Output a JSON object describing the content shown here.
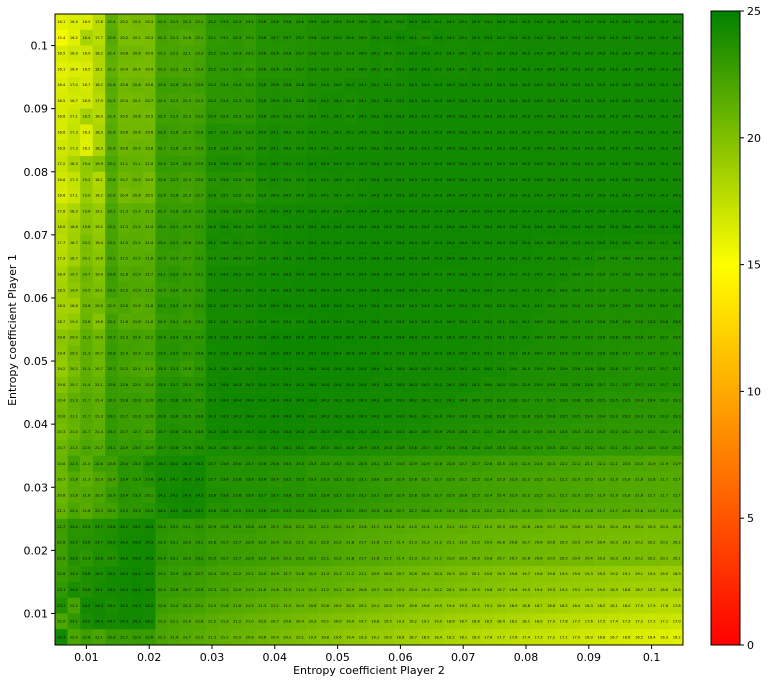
{
  "chart_data": {
    "type": "heatmap",
    "xlabel": "Entropy coefficient Player 2",
    "ylabel": "Entropy coefficient Player 1",
    "x_range": [
      0.005,
      0.105
    ],
    "y_range": [
      0.005,
      0.105
    ],
    "x_ticks": [
      "0.01",
      "0.02",
      "0.03",
      "0.04",
      "0.05",
      "0.06",
      "0.07",
      "0.08",
      "0.09",
      "0.1"
    ],
    "y_ticks": [
      "0.01",
      "0.02",
      "0.03",
      "0.04",
      "0.05",
      "0.06",
      "0.07",
      "0.08",
      "0.09",
      "0.1"
    ],
    "x_values_first": 0.006,
    "x_values_step": 0.002,
    "y_values_first": 0.006,
    "y_values_step": 0.002,
    "colorbar": {
      "min": 0,
      "max": 25,
      "ticks": [
        "0",
        "5",
        "10",
        "15",
        "20",
        "25"
      ],
      "colors": [
        "#ff0000",
        "#ffff00",
        "#008000"
      ]
    },
    "rows_top_to_bottom": [
      "16.1 16.4 16.5 17.8 21.4 20.2 20.4 20.3 22.4 22.3 22.3 22.2 23.2 23.3 23.3 23.1 23.6 23.6 23.6 23.6 23.9 23.9 23.9 23.9 23.9 24.1 24.0 24.0 24.3 24.3 24.1 24.1 24.1 24.3 24.1 24.3 24.2 24.3 24.3 24.3 24.3 24.3 24.3 24.3 24.3 24.3 24.3 24.3 24.3 24.3",
      "15.4 16.2 18.4 17.7 21.6 20.2 20.2 20.3 22.3 22.1 21.8 22.1 23.1 23.1 23.3 23.0 23.6 23.7 23.7 23.7 23.8 23.9 24.0 24.0 23.9 24.1 24.1 24.3 24.1 24.0 24.3 24.1 24.1 24.3 24.3 24.2 24.3 24.3 24.3 24.3 24.3 24.3 24.3 24.3 24.3 24.3 24.3 24.3 24.3 24.3",
      "16.5 16.9 16.9 18.2 21.4 20.6 20.6 20.4 22.2 22.2 22.1 22.3 23.2 23.2 23.3 23.1 23.6 23.6 23.6 23.7 23.8 23.9 23.9 23.9 24.0 24.1 24.0 24.1 24.3 24.3 24.1 24.1 24.1 24.3 24.1 24.3 24.3 24.3 24.3 24.3 24.3 24.3 24.3 24.3 24.3 24.3 24.3 24.3 24.3 24.3",
      "16.1 16.4 16.5 18.1 21.2 20.4 20.4 20.4 22.3 22.2 22.1 22.4 23.2 23.2 23.3 23.0 23.6 23.6 23.6 23.7 23.9 23.9 23.9 23.9 24.0 24.1 24.0 24.1 24.3 24.3 24.1 24.1 24.1 24.3 24.1 24.3 24.3 24.3 24.3 24.3 24.3 24.3 24.3 24.3 24.3 24.3 24.3 24.3 24.3 24.3",
      "16.4 17.0 16.7 18.2 21.6 20.6 20.8 20.6 22.6 22.6 22.4 22.6 23.3 23.3 23.4 23.3 23.8 23.8 23.8 23.8 24.0 24.0 24.0 24.1 24.1 24.1 24.1 24.1 24.3 24.3 24.3 24.3 24.3 24.3 24.3 24.3 24.3 24.3 24.3 24.3 24.3 24.3 24.3 24.3 24.3 24.3 24.3 24.3 24.3 24.3",
      "16.5 16.7 16.9 17.9 21.5 20.4 20.5 20.7 22.4 22.3 22.3 22.3 23.3 23.3 23.3 23.3 23.8 23.9 23.9 23.8 24.0 24.1 24.1 24.0 24.1 24.1 24.2 24.2 24.3 24.3 24.3 24.3 24.3 24.3 24.3 24.3 24.3 24.3 24.3 24.3 24.3 24.3 24.3 24.3 24.3 24.3 24.3 24.3 24.3 24.3",
      "16.6 17.1 18.5 18.0 21.4 20.5 20.6 20.5 22.5 22.5 22.3 22.5 23.4 23.3 23.3 23.3 23.8 23.9 23.9 23.9 24.0 24.1 24.1 24.0 24.2 24.2 24.3 24.3 24.3 24.3 24.3 24.3 24.3 24.3 24.3 24.3 24.3 24.3 24.3 24.3 24.3 24.3 24.3 24.3 24.3 24.3 24.3 24.3 24.3 24.3",
      "16.6 17.3 16.3 18.3 21.6 20.6 20.6 20.6 22.8 22.6 22.5 22.8 23.7 23.7 23.6 23.6 24.0 24.1 24.0 24.0 24.1 24.1 24.1 24.1 24.2 24.2 24.3 24.3 24.3 24.3 24.3 24.3 24.3 24.3 24.3 24.3 24.3 24.3 24.3 24.3 24.3 24.3 24.3 24.3 24.3 24.3 24.3 24.3 24.3 24.3",
      "16.9 17.3 16.2 18.3 21.6 20.8 20.9 20.8 22.7 22.6 22.5 22.6 23.6 23.6 23.6 23.5 24.0 24.1 24.0 24.0 24.1 24.1 24.2 24.2 24.2 24.2 24.3 24.3 24.3 24.3 24.3 24.3 24.3 24.3 24.3 24.3 24.3 24.3 24.3 24.3 24.3 24.3 24.3 24.3 24.3 24.3 24.3 24.3 24.3 24.3",
      "17.2 18.3 19.4 19.9 22.0 21.1 21.1 21.0 22.9 22.9 22.8 22.9 23.8 23.9 23.9 23.7 24.1 24.2 24.1 24.1 24.3 24.3 24.3 24.3 24.3 24.3 24.3 24.3 24.3 24.3 24.3 24.3 24.3 24.3 24.3 24.3 24.3 24.3 24.3 24.3 24.3 24.3 24.3 24.3 24.3 24.3 24.3 24.3 24.3 24.3",
      "16.8 17.3 19.2 18.1 21.8 20.7 20.9 20.5 22.6 22.7 22.4 22.6 23.5 23.6 23.5 23.4 24.0 24.1 24.0 24.0 24.1 24.1 24.2 24.1 24.2 24.3 24.3 24.3 24.3 24.3 24.3 24.3 24.3 24.3 24.3 24.3 24.3 24.3 24.3 24.3 24.3 24.3 24.3 24.3 24.3 24.3 24.3 24.3 24.3 24.3",
      "16.6 17.1 19.0 18.2 21.6 20.4 20.6 20.5 22.6 22.6 22.3 22.7 23.6 23.5 23.5 23.3 23.9 24.0 24.0 24.0 24.1 24.1 24.1 24.1 24.2 24.3 24.3 24.3 24.3 24.3 24.3 24.3 24.3 24.3 24.3 24.3 24.3 24.3 24.3 24.3 24.3 24.3 24.3 24.3 24.3 24.3 24.3 24.3 24.3 24.3",
      "17.6 18.3 19.6 19.1 22.1 21.3 21.4 21.3 22.9 22.8 22.9 22.9 23.8 23.8 23.8 23.8 24.1 24.2 24.3 24.3 24.3 24.3 24.3 24.4 24.4 24.4 24.4 24.4 24.4 24.4 24.4 24.4 24.4 24.4 24.4 24.4 24.4 24.4 24.4 24.4 24.4 24.4 24.4 24.4 24.4 24.4 24.4 24.4 24.4 24.4",
      "18.0 18.6 19.8 19.2 22.2 21.3 21.5 21.4 23.0 23.1 22.9 23.1 24.0 24.1 24.0 24.0 24.2 24.3 24.3 24.3 24.4 24.4 24.4 24.4 24.4 24.4 24.4 24.4 24.4 24.4 24.4 24.4 24.4 24.4 24.4 24.4 24.4 24.4 24.4 24.4 24.4 24.4 24.4 24.4 24.4 24.4 24.4 24.4 24.4 24.4",
      "17.7 18.7 20.2 19.4 22.2 21.5 21.5 21.4 23.0 23.1 22.8 23.0 24.1 24.0 24.1 24.0 24.2 24.2 24.3 24.3 24.4 24.4 24.4 24.4 24.4 24.4 24.4 24.4 24.4 24.4 24.4 24.4 24.4 24.4 24.4 24.4 24.4 24.4 24.3 24.3 24.3 24.3 24.3 24.3 24.2 24.2 24.1 24.1 24.1 24.1",
      "17.9 18.7 20.1 19.6 22.2 21.5 21.5 21.6 22.9 22.9 22.7 23.1 23.9 24.0 24.0 24.0 24.2 24.2 24.3 24.3 24.4 24.4 24.4 24.4 24.4 24.4 24.4 24.4 24.4 24.4 24.4 24.4 24.4 24.3 24.3 24.3 24.3 24.3 24.2 24.2 24.2 24.1 24.1 24.0 24.0 24.0 24.0 24.0 24.0 24.0",
      "18.4 19.7 20.7 19.9 22.6 21.8 21.9 21.7 23.1 23.3 22.9 23.1 24.1 24.2 24.2 24.2 24.3 24.3 24.3 24.4 24.4 24.4 24.4 24.4 24.4 24.4 24.4 24.4 24.4 24.4 24.3 24.3 24.3 24.3 24.3 24.3 24.2 24.2 24.2 24.1 24.1 24.0 24.0 23.9 23.9 23.9 23.9 23.9 23.9 23.9",
      "18.5 19.4 20.5 20.1 22.5 22.0 21.9 21.9 22.9 23.0 22.9 23.1 24.1 24.2 24.1 24.2 24.3 24.3 24.3 24.4 24.4 24.4 24.4 24.4 24.4 24.4 24.4 24.4 24.4 24.3 24.3 24.3 24.3 24.3 24.3 24.2 24.2 24.1 24.1 24.1 24.0 24.0 24.0 23.9 23.9 23.9 23.9 23.9 23.9 23.9",
      "18.5 18.6 20.6 20.5 21.9 22.0 21.6 21.8 23.2 23.3 22.9 23.3 24.2 24.2 24.1 24.2 24.3 24.4 24.4 24.4 24.4 24.5 24.5 24.4 24.4 24.4 24.3 24.3 24.3 24.3 24.3 24.3 24.3 24.3 24.2 24.2 24.1 24.1 24.1 24.0 24.0 24.0 23.9 23.9 23.9 23.9 23.9 23.9 23.9 23.9",
      "18.7 19.2 20.8 19.8 22.4 21.6 21.8 21.6 22.9 23.1 22.8 23.1 24.1 24.1 24.1 24.1 24.3 24.3 24.3 24.3 24.4 24.4 24.4 24.4 24.4 24.4 24.3 24.3 24.3 24.3 24.3 24.3 24.2 24.2 24.2 24.1 24.1 24.1 24.0 24.0 24.0 23.9 23.9 23.8 23.8 23.8 23.8 23.8 23.8 23.8",
      "19.6 20.0 21.3 20.6 22.7 22.3 22.4 22.2 23.4 23.4 23.3 23.3 24.3 24.3 24.3 24.3 24.4 24.5 24.5 24.5 24.5 24.5 24.5 24.5 24.4 24.4 24.4 24.4 24.4 24.3 24.3 24.3 24.3 24.3 24.2 24.1 24.1 24.1 24.0 24.0 24.0 23.9 23.9 23.8 23.8 23.8 23.8 23.7 23.7 23.6",
      "19.4 20.5 21.3 20.7 22.8 22.4 22.3 22.2 23.5 23.5 23.2 23.4 24.2 24.3 24.3 24.3 24.4 24.5 24.5 24.5 24.5 24.5 24.4 24.4 24.4 24.4 24.3 24.3 24.3 24.3 24.3 24.3 24.3 24.2 24.2 24.1 24.1 24.0 24.0 24.0 23.9 23.9 23.9 23.8 23.8 23.7 23.7 23.7 23.7 23.7",
      "19.2 20.2 21.3 20.7 22.7 22.3 22.1 21.9 23.3 23.3 22.8 23.3 24.3 24.3 24.3 24.3 24.4 24.4 24.4 24.4 24.4 24.4 24.4 24.4 24.4 24.4 24.3 24.3 24.3 24.3 24.3 24.3 24.2 24.2 24.2 24.1 24.0 24.0 23.9 23.9 23.9 23.8 23.8 23.8 23.8 23.7 23.7 23.7 23.7 23.7",
      "19.8 20.7 21.4 21.1 22.8 22.6 22.5 22.4 23.5 23.7 23.4 23.6 24.3 24.4 24.3 24.3 24.4 24.4 24.4 24.4 24.4 24.4 24.4 24.4 24.4 24.3 24.3 24.3 24.3 24.2 24.2 24.2 24.2 24.1 24.0 24.0 23.9 23.9 23.9 23.8 23.8 23.8 23.8 23.7 23.7 23.7 23.7 23.7 23.7 23.7",
      "20.4 21.3 21.7 21.4 22.9 22.8 22.8 22.6 23.7 23.8 23.6 23.5 24.3 24.4 24.4 24.4 24.4 24.4 24.4 24.4 24.4 24.3 24.3 24.3 24.3 24.3 24.2 24.2 24.2 24.1 24.1 24.1 24.0 24.0 23.9 23.9 23.8 23.7 23.7 23.7 23.6 23.6 23.6 23.5 23.5 23.5 23.4 23.4 23.3 23.3",
      "20.6 21.1 21.7 21.3 23.0 22.7 22.6 22.6 23.6 23.6 23.5 23.6 24.3 24.3 24.3 24.4 24.3 24.4 24.4 24.4 24.3 24.3 24.3 24.3 24.3 24.2 24.2 24.2 24.1 24.1 24.0 24.0 23.9 23.9 23.8 23.8 23.7 23.6 23.6 23.6 23.5 23.5 23.4 23.4 23.3 23.3 23.3 23.3 23.3 23.3",
      "20.3 21.0 21.7 21.4 23.0 22.7 22.7 22.5 23.7 23.8 23.6 23.6 24.3 24.4 24.3 24.3 24.4 24.4 24.4 24.4 24.3 24.3 24.3 24.3 24.2 24.2 24.1 24.1 24.0 24.0 23.9 23.8 23.8 23.7 23.7 23.6 23.6 23.5 23.5 23.4 23.4 23.3 23.3 23.3 23.2 23.2 23.2 23.2 23.1 23.1",
      "20.7 21.5 22.0 21.7 23.1 22.9 23.0 22.9 23.7 23.8 23.6 23.8 24.0 24.0 24.0 24.0 24.1 24.1 24.1 24.1 24.0 24.0 24.0 24.0 23.9 23.9 23.8 23.8 23.8 23.7 23.7 23.6 23.6 23.6 23.5 23.5 23.4 23.4 23.3 23.3 23.2 23.2 23.2 23.1 23.1 23.1 23.0 23.0 23.0 23.0",
      "20.8 22.5 21.5 22.6 22.6 23.4 23.3 23.9 24.1 24.2 24.3 24.3 23.7 23.6 23.6 23.7 23.6 23.6 23.5 23.5 23.3 23.3 23.3 23.3 23.3 23.1 23.1 23.0 22.9 22.9 22.8 22.8 22.7 22.7 22.6 22.5 22.5 22.4 22.4 22.3 22.2 22.2 22.1 22.1 22.1 22.0 22.0 21.9 21.9 21.9",
      "20.7 21.8 21.3 21.9 22.4 23.4 23.3 23.6 24.1 24.1 24.3 24.3 23.7 23.6 23.6 23.6 23.6 23.4 23.5 23.5 23.3 23.3 23.3 23.2 23.1 23.0 22.9 22.9 22.8 22.7 22.7 22.6 22.5 22.5 22.4 22.3 22.3 22.2 22.2 22.1 22.1 22.0 22.0 21.9 21.9 21.8 21.8 21.8 21.7 21.7",
      "20.8 21.6 21.8 22.0 22.9 23.4 23.3 23.1 24.2 24.3 24.4 24.3 23.8 23.8 23.6 23.6 23.7 23.7 23.6 23.5 23.5 23.4 23.3 23.3 23.2 23.1 23.0 22.9 22.8 22.8 22.7 22.6 22.6 22.5 22.4 22.4 22.3 22.2 22.2 22.1 22.1 22.0 22.0 21.9 21.9 21.8 21.8 21.7 21.7 21.7",
      "21.1 22.0 21.6 22.3 22.5 23.3 23.3 23.5 24.0 24.2 24.3 24.2 23.6 23.6 23.5 23.6 23.6 23.5 23.5 23.4 23.4 23.3 23.2 23.1 23.0 22.9 22.8 22.7 22.7 22.6 22.5 22.4 22.4 22.3 22.2 22.2 22.1 22.0 22.0 21.9 21.9 21.8 21.8 21.7 21.7 21.6 21.6 21.5 21.5 21.5",
      "22.7 23.4 23.4 23.7 23.8 24.1 24.2 24.3 23.4 23.2 23.1 23.2 22.9 22.8 22.9 22.8 22.6 22.5 22.4 22.3 22.2 22.1 22.0 21.9 21.8 21.7 21.6 21.6 21.5 21.4 21.3 21.2 21.2 21.1 21.0 20.9 20.9 20.8 20.8 20.7 20.6 20.6 20.5 20.5 20.4 20.4 20.4 20.3 20.3 20.3",
      "22.6 23.5 23.6 23.7 23.9 24.2 24.3 24.3 23.3 23.1 23.0 23.1 22.8 22.7 22.7 22.6 22.5 22.4 22.3 22.2 22.1 22.0 21.9 21.8 21.7 21.6 21.5 21.4 21.3 21.3 21.2 21.1 21.0 21.0 20.9 20.8 20.8 20.7 20.6 20.6 20.5 20.5 20.4 20.4 20.3 20.3 20.2 20.2 20.2 20.2",
      "22.6 23.6 23.3 23.8 23.7 24.2 24.3 24.3 23.4 23.1 23.0 23.2 22.9 22.7 22.7 22.6 22.5 22.4 22.3 22.3 22.2 22.1 21.9 21.8 21.7 21.6 21.5 21.4 21.3 21.2 21.1 21.0 20.9 20.9 20.8 20.7 20.7 20.6 20.6 20.5 20.5 20.4 20.4 20.3 20.3 20.3 20.2 20.2 20.1 20.1",
      "22.8 23.3 23.8 24.0 24.2 24.3 24.4 24.3 23.0 22.9 22.8 22.7 22.4 22.3 22.2 22.1 22.0 21.9 21.7 21.6 21.5 21.4 21.3 21.2 21.1 20.9 20.8 20.7 20.6 20.5 20.4 20.3 20.2 20.1 20.0 19.9 19.8 19.7 19.6 19.6 19.5 19.4 19.3 19.3 19.2 19.1 19.1 19.0 19.0 18.9",
      "23.1 24.0 23.8 24.1 24.2 24.3 24.4 24.3 22.9 22.8 22.7 22.6 22.3 22.2 22.0 21.9 21.8 21.6 21.5 21.4 21.3 21.2 21.1 20.9 20.8 20.7 20.6 20.5 20.4 20.3 20.2 20.1 20.0 19.9 19.8 19.7 19.6 19.5 19.4 19.3 19.2 19.1 19.0 19.0 18.9 18.8 18.7 18.7 18.6 18.6",
      "23.7 22.2 24.2 24.3 24.0 24.2 24.3 24.2 22.6 22.4 22.3 22.2 21.9 21.8 21.6 21.5 21.3 21.2 21.0 20.9 20.8 20.6 20.5 20.4 20.2 20.1 20.0 19.9 19.8 19.6 19.5 19.4 19.3 19.2 19.1 19.0 18.9 18.8 18.7 18.6 18.5 18.4 18.3 18.2 18.1 18.0 17.9 17.9 17.8 17.8",
      "22.0 23.1 24.0 24.3 24.1 24.3 24.3 24.2 22.3 22.1 21.9 21.8 21.5 21.3 21.2 21.0 20.9 20.7 20.6 20.4 20.3 20.1 20.0 19.9 19.7 19.6 19.5 19.3 19.2 19.1 19.0 18.8 18.7 18.6 18.5 18.4 18.2 18.1 18.0 17.9 17.8 17.7 17.6 17.5 17.4 17.3 17.2 17.1 17.1 17.0",
      "24.3 22.0 22.6 22.1 22.8 22.7 22.8 22.8 22.1 21.9 21.7 21.5 21.3 21.1 20.9 20.8 20.6 20.4 20.2 20.1 19.9 19.8 19.6 19.4 19.3 19.1 19.0 18.8 18.7 18.5 18.4 18.2 18.1 18.0 17.8 17.7 17.6 17.4 17.3 17.2 17.1 17.0 16.9 16.8 16.7 16.6 16.5 16.4 16.3 16.2"
    ]
  }
}
